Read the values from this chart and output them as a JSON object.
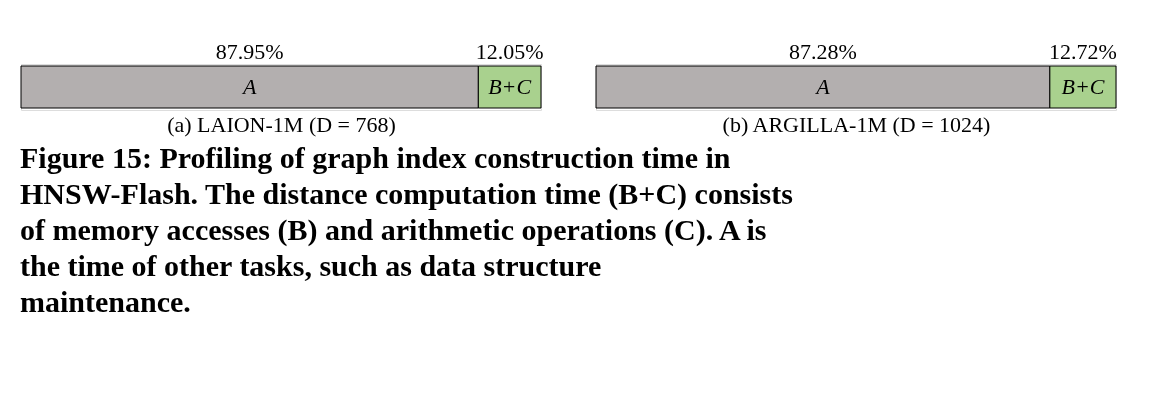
{
  "chart_data": [
    {
      "type": "bar",
      "orientation": "horizontal",
      "stacked": true,
      "categories": [
        null
      ],
      "tick_labels": false,
      "xlabel": "(a) LAION-1M (D = 768)",
      "series": [
        {
          "name": "A",
          "color": "#b3afaf",
          "values": [
            87.95
          ],
          "value_labels": [
            "87.95%"
          ]
        },
        {
          "name": "B+C",
          "color": "#a9d18e",
          "values": [
            12.05
          ],
          "value_labels": [
            "12.05%"
          ]
        }
      ],
      "annotations": [
        "Figure 15: Profiling of graph index construction time in HNSW-Flash. The distance computation time (B+C) consists of memory accesses (B) and arithmetic operations (C). A is the time of other tasks, such as data structure maintenance."
      ]
    },
    {
      "type": "bar",
      "orientation": "horizontal",
      "stacked": true,
      "categories": [
        null
      ],
      "tick_labels": false,
      "xlabel": "(b) ARGILLA-1M (D = 1024)",
      "series": [
        {
          "name": "A",
          "color": "#b3afaf",
          "values": [
            87.28
          ],
          "value_labels": [
            "87.28%"
          ]
        },
        {
          "name": "B+C",
          "color": "#a9d18e",
          "values": [
            12.72
          ],
          "value_labels": [
            "12.72%"
          ]
        }
      ]
    }
  ]
}
